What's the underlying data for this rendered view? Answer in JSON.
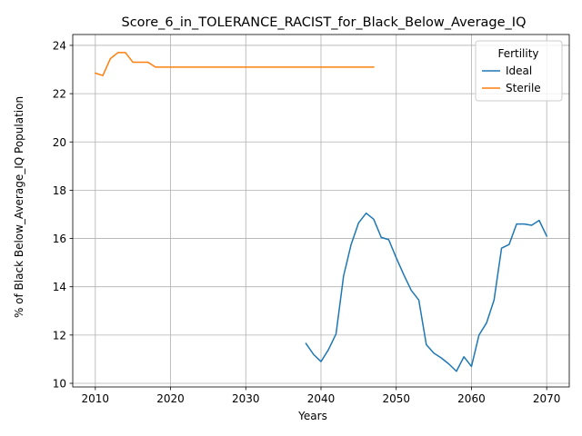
{
  "chart_data": {
    "type": "line",
    "title": "Score_6_in_TOLERANCE_RACIST_for_Black_Below_Average_IQ",
    "xlabel": "Years",
    "ylabel": "% of Black Below_Average_IQ Population",
    "xlim": [
      2007,
      2073
    ],
    "ylim": [
      9.85,
      24.45
    ],
    "xticks": [
      2010,
      2020,
      2030,
      2040,
      2050,
      2060,
      2070
    ],
    "yticks": [
      10,
      12,
      14,
      16,
      18,
      20,
      22,
      24
    ],
    "grid": true,
    "legend": {
      "title": "Fertility",
      "placement": "top-right"
    },
    "series": [
      {
        "name": "Ideal",
        "color": "#1f77b4",
        "x": [
          2038,
          2039,
          2040,
          2041,
          2042,
          2043,
          2044,
          2045,
          2046,
          2047,
          2048,
          2049,
          2050,
          2051,
          2052,
          2053,
          2054,
          2055,
          2056,
          2057,
          2058,
          2059,
          2060,
          2061,
          2062,
          2063,
          2064,
          2065,
          2066,
          2067,
          2068,
          2069,
          2070
        ],
        "y": [
          11.65,
          11.2,
          10.9,
          11.4,
          12.05,
          14.45,
          15.75,
          16.65,
          17.05,
          16.8,
          16.05,
          15.95,
          15.2,
          14.5,
          13.85,
          13.45,
          11.6,
          11.25,
          11.05,
          10.8,
          10.5,
          11.1,
          10.7,
          12.0,
          12.5,
          13.45,
          15.6,
          15.75,
          16.6,
          16.6,
          16.55,
          16.75,
          16.1
        ]
      },
      {
        "name": "Sterile",
        "color": "#ff7f0e",
        "x": [
          2010,
          2011,
          2012,
          2013,
          2014,
          2015,
          2016,
          2017,
          2018,
          2019,
          2020,
          2021,
          2022,
          2023,
          2024,
          2025,
          2026,
          2027,
          2028,
          2029,
          2030,
          2031,
          2032,
          2033,
          2034,
          2035,
          2036,
          2037,
          2038,
          2039,
          2040,
          2041,
          2042,
          2043,
          2044,
          2045,
          2046,
          2047
        ],
        "y": [
          22.85,
          22.75,
          23.45,
          23.7,
          23.7,
          23.3,
          23.3,
          23.3,
          23.1,
          23.1,
          23.1,
          23.1,
          23.1,
          23.1,
          23.1,
          23.1,
          23.1,
          23.1,
          23.1,
          23.1,
          23.1,
          23.1,
          23.1,
          23.1,
          23.1,
          23.1,
          23.1,
          23.1,
          23.1,
          23.1,
          23.1,
          23.1,
          23.1,
          23.1,
          23.1,
          23.1,
          23.1,
          23.1
        ]
      }
    ]
  }
}
